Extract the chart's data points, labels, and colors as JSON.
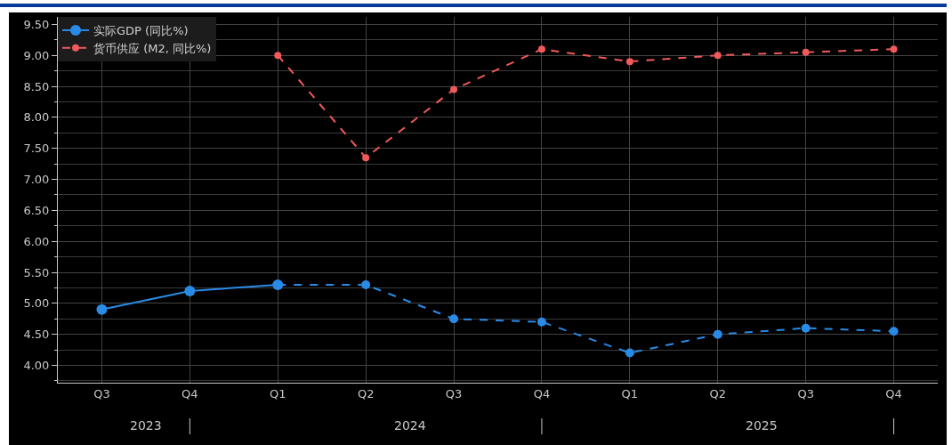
{
  "chart_data": {
    "type": "line",
    "categories": [
      "Q3",
      "Q4",
      "Q1",
      "Q2",
      "Q3",
      "Q4",
      "Q1",
      "Q2",
      "Q3",
      "Q4"
    ],
    "annotations": [
      "2023",
      "2024",
      "2025"
    ],
    "series": [
      {
        "name": "实际GDP (同比%)",
        "color": "#2a8be6",
        "line_style": "solid",
        "values": [
          4.9,
          5.2,
          5.3,
          null,
          null,
          null,
          null,
          null,
          null,
          null
        ]
      },
      {
        "color": "#2a8be6",
        "line_style": "dashed",
        "values": [
          null,
          null,
          5.3,
          5.3,
          4.75,
          4.7,
          4.2,
          4.5,
          4.6,
          4.55
        ]
      },
      {
        "name": "货币供应 (M2, 同比%)",
        "color": "#f05a5a",
        "line_style": "dashed",
        "values": [
          null,
          null,
          9.0,
          7.35,
          8.45,
          9.1,
          8.9,
          9.0,
          9.05,
          9.1
        ]
      }
    ],
    "ylim": [
      3.72,
      9.62
    ],
    "yticks": [
      {
        "value": 4,
        "label": "4.00"
      },
      {
        "value": 4.5,
        "label": "4.50"
      },
      {
        "value": 5,
        "label": "5.00"
      },
      {
        "value": 5.5,
        "label": "5.50"
      },
      {
        "value": 6,
        "label": "6.00"
      },
      {
        "value": 6.5,
        "label": "6.50"
      },
      {
        "value": 7,
        "label": "7.00"
      },
      {
        "value": 7.5,
        "label": "7.50"
      },
      {
        "value": 8,
        "label": "8.00"
      },
      {
        "value": 8.5,
        "label": "8.50"
      },
      {
        "value": 9,
        "label": "9.00"
      },
      {
        "value": 9.5,
        "label": "9.50"
      }
    ],
    "grid": true,
    "legend": "top left",
    "marker": "circle"
  }
}
